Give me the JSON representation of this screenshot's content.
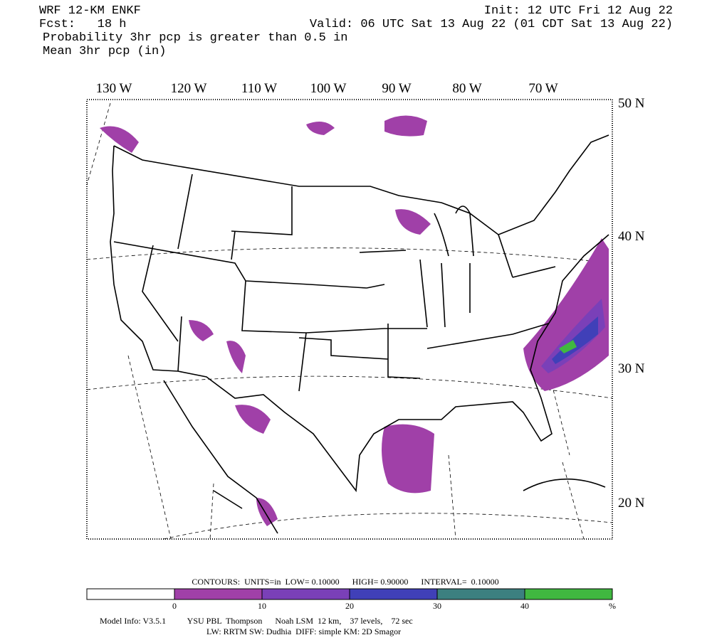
{
  "header": {
    "model": "WRF 12-KM ENKF",
    "init": "Init: 12 UTC Fri 12 Aug 22",
    "forecast": "Fcst:   18 h",
    "valid": "Valid: 06 UTC Sat 13 Aug 22 (01 CDT Sat 13 Aug 22)",
    "field1": "Probability 3hr pcp is greater than 0.5 in",
    "field2": "Mean 3hr pcp (in)"
  },
  "map": {
    "longitude_labels": [
      "130 W",
      "120 W",
      "110 W",
      "100 W",
      "90 W",
      "80 W",
      "70 W"
    ],
    "latitude_labels": [
      "50 N",
      "40 N",
      "30 N",
      "20 N"
    ]
  },
  "contours": "CONTOURS:  UNITS=in  LOW= 0.10000      HIGH= 0.90000      INTERVAL=  0.10000",
  "colorbar": {
    "colors": [
      "#ffffff",
      "#a040a8",
      "#7a40b8",
      "#4040b8",
      "#3c8080",
      "#40b840"
    ],
    "ticks": [
      0,
      10,
      20,
      30,
      40
    ],
    "unit": "%"
  },
  "model_info": {
    "line1": "Model Info: V3.5.1          YSU PBL  Thompson      Noah LSM  12 km,    37 levels,    72 sec",
    "line2": "LW: RRTM SW: Dudhia  DIFF: simple KM: 2D Smagor"
  }
}
